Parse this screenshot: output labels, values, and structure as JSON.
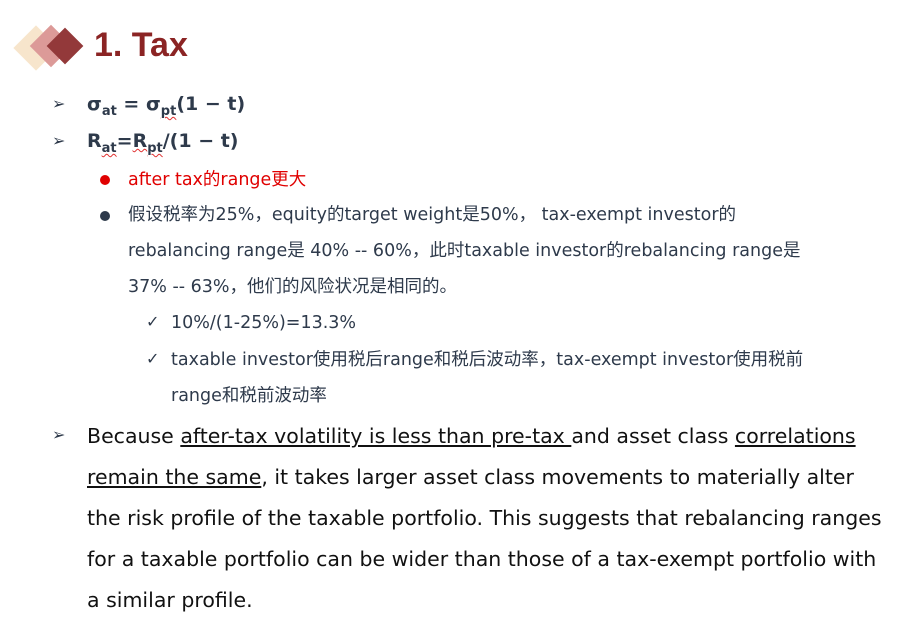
{
  "title": "1. Tax",
  "formulas": [
    {
      "lhs": "σ",
      "lhs_sub": "at",
      "eq": " = ",
      "rhs": "σ",
      "rhs_sub": "pt",
      "tail": "(1 − t)"
    },
    {
      "lhs": "R",
      "lhs_sub": "at",
      "eq": "=",
      "rhs": "R",
      "rhs_sub": "pt",
      "tail": "/(1 − t)"
    }
  ],
  "red_bullet": "after tax的range更大",
  "gray_bullet_lines": [
    "假设税率为25%，equity的target weight是50%， tax-exempt investor的",
    "rebalancing range是 40% -- 60%，此时taxable investor的rebalancing range是",
    "37% -- 63%，他们的风险状况是相同的。"
  ],
  "checks": [
    [
      "10%/(1-25%)=13.3%"
    ],
    [
      "taxable investor使用税后range和税后波动率，tax-exempt investor使用税前",
      "range和税前波动率"
    ]
  ],
  "paragraph": {
    "p1": "Because ",
    "u1": "after-tax volatility is less than pre-tax ",
    "p2": "and asset class ",
    "u2": "correlations remain the same",
    "p3": ", it takes larger asset class movements to materially alter the risk profile of the taxable portfolio. This suggests that rebalancing ranges for a taxable portfolio can be wider than those of a tax-exempt portfolio with a similar profile."
  },
  "colors": {
    "title": "#8b2424",
    "red": "#e00000",
    "bullet": "#2e3a4b"
  }
}
